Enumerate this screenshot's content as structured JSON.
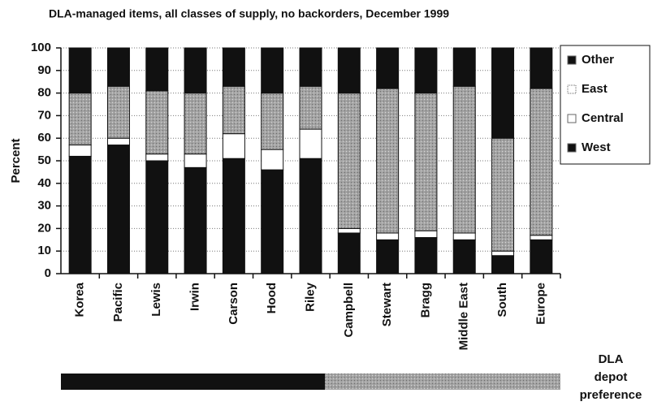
{
  "chart_data": {
    "type": "stacked_bar",
    "title": "DLA-managed items, all classes of supply, no backorders, December 1999",
    "y_label": "Percent",
    "categories": [
      "Korea",
      "Pacific",
      "Lewis",
      "Irwin",
      "Carson",
      "Hood",
      "Riley",
      "Campbell",
      "Stewart",
      "Bragg",
      "Middle East",
      "South",
      "Europe"
    ],
    "series": [
      {
        "name": "West",
        "color": "#111111",
        "values": [
          52,
          57,
          50,
          47,
          51,
          46,
          51,
          18,
          15,
          16,
          15,
          8,
          15
        ]
      },
      {
        "name": "Central",
        "color": "#ffffff",
        "values": [
          5,
          3,
          3,
          6,
          11,
          9,
          13,
          2,
          3,
          3,
          3,
          2,
          2
        ]
      },
      {
        "name": "East",
        "color": "#a3a3a3",
        "values": [
          23,
          23,
          28,
          27,
          21,
          25,
          19,
          60,
          64,
          61,
          65,
          50,
          65
        ]
      },
      {
        "name": "Other",
        "color": "#111111",
        "values": [
          20,
          17,
          19,
          20,
          17,
          20,
          17,
          20,
          18,
          20,
          17,
          40,
          18
        ]
      }
    ],
    "ylim": [
      0,
      100
    ],
    "yticks": [
      0,
      10,
      20,
      30,
      40,
      50,
      60,
      70,
      80,
      90,
      100
    ],
    "grid": true,
    "legend_position": "right",
    "annotation_lines": [
      "DLA",
      "depot",
      "preference"
    ]
  }
}
